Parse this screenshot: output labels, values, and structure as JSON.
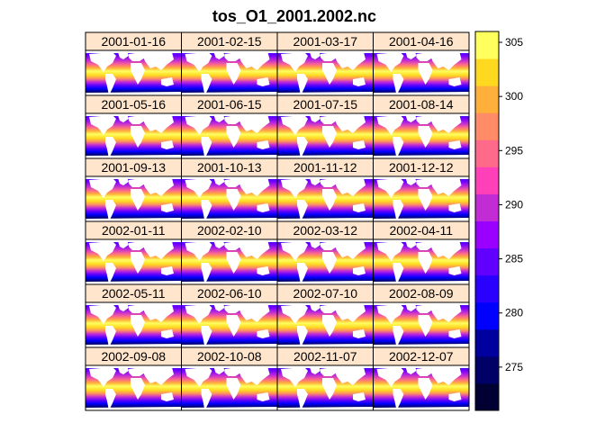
{
  "chart_data": {
    "type": "heatmap",
    "title": "tos_O1_2001.2002.nc",
    "layout": {
      "columns": 4,
      "rows": 6
    },
    "panels": [
      "2001-01-16",
      "2001-02-15",
      "2001-03-17",
      "2001-04-16",
      "2001-05-16",
      "2001-06-15",
      "2001-07-15",
      "2001-08-14",
      "2001-09-13",
      "2001-10-13",
      "2001-11-12",
      "2001-12-12",
      "2002-01-11",
      "2002-02-10",
      "2002-03-12",
      "2002-04-11",
      "2002-05-11",
      "2002-06-10",
      "2002-07-10",
      "2002-08-09",
      "2002-09-08",
      "2002-10-08",
      "2002-11-07",
      "2002-12-07"
    ],
    "colorbar": {
      "min": 271,
      "max": 306,
      "ticks": [
        275,
        280,
        285,
        290,
        295,
        300,
        305
      ],
      "levels": [
        {
          "from": 271,
          "to": 273.5,
          "color": "#000033"
        },
        {
          "from": 273.5,
          "to": 276,
          "color": "#000066"
        },
        {
          "from": 276,
          "to": 278.5,
          "color": "#00009e"
        },
        {
          "from": 278.5,
          "to": 281,
          "color": "#0000ff"
        },
        {
          "from": 281,
          "to": 283.5,
          "color": "#2a00ff"
        },
        {
          "from": 283.5,
          "to": 286,
          "color": "#6000ff"
        },
        {
          "from": 286,
          "to": 288.5,
          "color": "#9a00ff"
        },
        {
          "from": 288.5,
          "to": 291,
          "color": "#c22cd4"
        },
        {
          "from": 291,
          "to": 293.5,
          "color": "#ff40b8"
        },
        {
          "from": 293.5,
          "to": 296,
          "color": "#ff6a8a"
        },
        {
          "from": 296,
          "to": 298.5,
          "color": "#ff8c66"
        },
        {
          "from": 298.5,
          "to": 301,
          "color": "#ffb03a"
        },
        {
          "from": 301,
          "to": 303.5,
          "color": "#ffd820"
        },
        {
          "from": 303.5,
          "to": 306,
          "color": "#ffff5e"
        }
      ]
    },
    "colors": {
      "strip_background": "#ffe5cc",
      "land": "#ffffff",
      "border": "#000000"
    }
  }
}
